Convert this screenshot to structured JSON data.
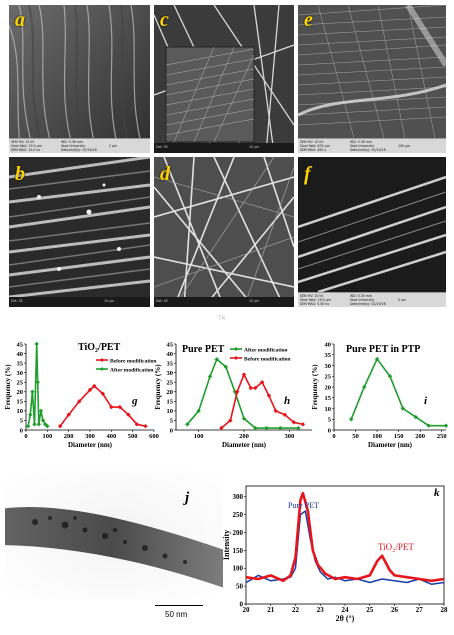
{
  "panels": {
    "a": {
      "label": "a",
      "info": [
        "SEM HV: 15 kV",
        "WD: 5.36 mm",
        "View field: 19.0 µm",
        "Yazd University",
        "2 µm",
        "SEM MAG: 10.0 kx",
        "Date(m/d/y): 02/19/16"
      ]
    },
    "b": {
      "label": "b",
      "info": [
        "Det: SE",
        "10 µm"
      ]
    },
    "c": {
      "label": "c",
      "info": [
        "Det: SE",
        "10 µm"
      ]
    },
    "d": {
      "label": "d",
      "info": [
        "Det: SE",
        "10 µm"
      ]
    },
    "e": {
      "label": "e",
      "info": [
        "SEM HV: 15 kV",
        "WD: 5.36 mm",
        "View field: 633 µm",
        "Yazd University",
        "100 µm",
        "SEM MAG: 300 x",
        "Date(m/d/y): 02/19/16"
      ]
    },
    "f": {
      "label": "f",
      "info": [
        "SEM HV: 15 kV",
        "WD: 5.35 mm",
        "View field: 19.0 µm",
        "Yazd University",
        "5 µm",
        "SEM MAG: 5.00 kx",
        "Date(m/d/y): 02/19/16"
      ]
    },
    "j": {
      "label": "j",
      "scale": "50 nm"
    }
  },
  "watermark": "TK",
  "chart_data": [
    {
      "type": "line",
      "panel": "g",
      "title": "TiO₂/PET",
      "xlabel": "Diameter (nm)",
      "ylabel": "Frequency (%)",
      "xlim": [
        0,
        600
      ],
      "ylim": [
        0,
        45
      ],
      "xticks": [
        "0",
        "100",
        "200",
        "300",
        "400",
        "500",
        "600"
      ],
      "yticks": [
        "0",
        "5",
        "10",
        "15",
        "20",
        "25",
        "30",
        "35",
        "40",
        "45"
      ],
      "series": [
        {
          "name": "Before modification",
          "color": "#e8141c",
          "x": [
            160,
            200,
            250,
            300,
            320,
            360,
            400,
            440,
            480,
            520,
            560
          ],
          "y": [
            2,
            8,
            15,
            21,
            23,
            19,
            12,
            12,
            8,
            3,
            2
          ]
        },
        {
          "name": "After modification",
          "color": "#1f9e2e",
          "x": [
            10,
            20,
            30,
            40,
            50,
            55,
            60,
            70,
            80,
            90,
            100
          ],
          "y": [
            2,
            8,
            20,
            3,
            45,
            25,
            3,
            10,
            5,
            3,
            2
          ]
        }
      ]
    },
    {
      "type": "line",
      "panel": "h",
      "title": "Pure PET",
      "xlabel": "Diameter (nm)",
      "ylabel": "Frequency (%)",
      "xlim": [
        50,
        350
      ],
      "ylim": [
        0,
        45
      ],
      "xticks": [
        "0",
        "100",
        "200",
        "300"
      ],
      "yticks": [
        "0",
        "5",
        "10",
        "15",
        "20",
        "25",
        "30",
        "35",
        "40",
        "45"
      ],
      "series": [
        {
          "name": "After modification",
          "color": "#1f9e2e",
          "x": [
            75,
            100,
            125,
            140,
            160,
            180,
            200,
            225,
            250,
            280,
            320
          ],
          "y": [
            3,
            10,
            28,
            37,
            33,
            20,
            6,
            1,
            1,
            1,
            1
          ]
        },
        {
          "name": "Before modification",
          "color": "#e8141c",
          "x": [
            150,
            170,
            185,
            200,
            215,
            225,
            240,
            255,
            270,
            290,
            310,
            330
          ],
          "y": [
            1,
            5,
            20,
            29,
            22,
            22,
            25,
            18,
            10,
            8,
            4,
            3
          ]
        }
      ]
    },
    {
      "type": "line",
      "panel": "i",
      "title": "Pure PET in PTP",
      "xlabel": "Diameter (nm)",
      "ylabel": "Frequency (%)",
      "xlim": [
        0,
        260
      ],
      "ylim": [
        0,
        40
      ],
      "xticks": [
        "0",
        "50",
        "100",
        "150",
        "200",
        "250"
      ],
      "yticks": [
        "0",
        "5",
        "10",
        "15",
        "20",
        "25",
        "30",
        "35",
        "40"
      ],
      "series": [
        {
          "name": "",
          "color": "#1f9e2e",
          "x": [
            40,
            70,
            100,
            130,
            160,
            190,
            220,
            260
          ],
          "y": [
            5,
            20,
            33,
            25,
            10,
            6,
            2,
            2
          ]
        }
      ]
    },
    {
      "type": "line",
      "panel": "k",
      "xlabel": "2θ (°)",
      "ylabel": "Intensity",
      "xlim": [
        20,
        28
      ],
      "ylim": [
        0,
        330
      ],
      "xticks": [
        "20",
        "21",
        "22",
        "23",
        "24",
        "25",
        "26",
        "27",
        "28"
      ],
      "yticks": [
        "0",
        "50",
        "100",
        "150",
        "200",
        "250",
        "300"
      ],
      "series": [
        {
          "name": "Pure PET",
          "color": "#1a3aa8",
          "x": [
            20,
            20.5,
            21,
            21.5,
            21.8,
            22,
            22.2,
            22.4,
            22.6,
            22.8,
            23,
            23.3,
            23.6,
            24,
            24.5,
            25,
            25.5,
            26,
            26.5,
            27,
            27.5,
            28
          ],
          "y": [
            60,
            80,
            65,
            70,
            75,
            100,
            250,
            260,
            180,
            120,
            90,
            70,
            75,
            65,
            70,
            60,
            70,
            65,
            60,
            70,
            55,
            60
          ]
        },
        {
          "name": "TiO₂/PET",
          "color": "#e8141c",
          "x": [
            20,
            20.5,
            21,
            21.5,
            21.8,
            22,
            22.2,
            22.3,
            22.5,
            22.7,
            22.9,
            23.2,
            23.6,
            24,
            24.5,
            25,
            25.3,
            25.5,
            25.8,
            26,
            26.5,
            27,
            27.5,
            28
          ],
          "y": [
            75,
            70,
            80,
            65,
            80,
            130,
            290,
            310,
            260,
            150,
            110,
            85,
            70,
            75,
            70,
            80,
            120,
            135,
            95,
            80,
            75,
            70,
            65,
            70
          ]
        }
      ]
    }
  ]
}
